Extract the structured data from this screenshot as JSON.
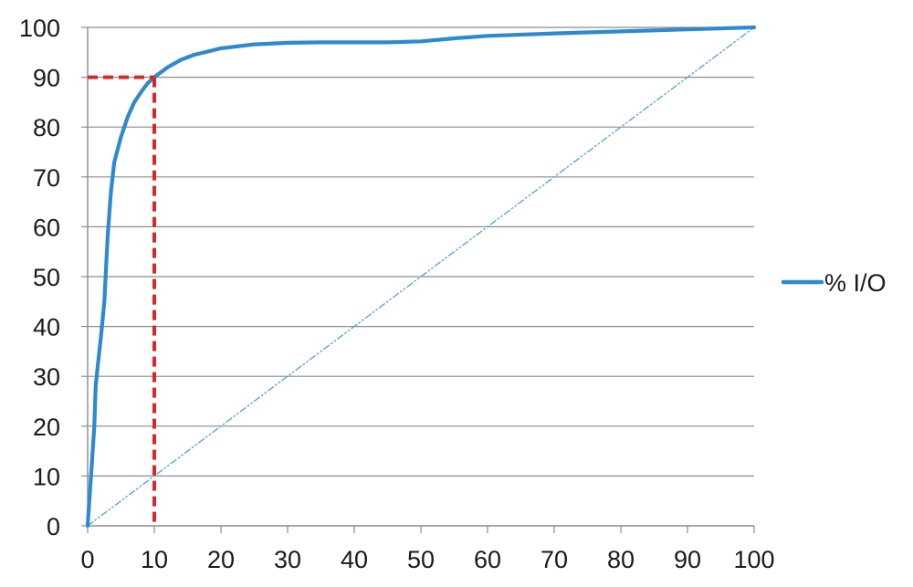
{
  "chart_data": {
    "type": "line",
    "title": "",
    "xlabel": "",
    "ylabel": "",
    "xlim": [
      0,
      100
    ],
    "ylim": [
      0,
      100
    ],
    "x_ticks": [
      "0",
      "10",
      "20",
      "30",
      "40",
      "50",
      "60",
      "70",
      "80",
      "90",
      "100"
    ],
    "y_ticks": [
      "0",
      "10",
      "20",
      "30",
      "40",
      "50",
      "60",
      "70",
      "80",
      "90",
      "100"
    ],
    "grid": "horizontal",
    "legend_position": "right",
    "series": [
      {
        "name": "% I/O",
        "color": "#2e8ad0",
        "style": "solid",
        "x": [
          0,
          0.5,
          1,
          1.2,
          1.5,
          2,
          2.5,
          3,
          3.5,
          4,
          5,
          6,
          7,
          8,
          9,
          10,
          12,
          14,
          16,
          20,
          25,
          30,
          35,
          40,
          45,
          50,
          55,
          60,
          70,
          80,
          90,
          100
        ],
        "y": [
          0,
          10,
          20,
          28,
          32,
          38,
          45,
          58,
          67,
          73,
          78,
          82,
          85,
          87,
          88.8,
          90,
          92,
          93.5,
          94.5,
          95.8,
          96.6,
          96.9,
          97,
          97,
          97,
          97.2,
          97.8,
          98.3,
          98.8,
          99.2,
          99.6,
          100
        ]
      },
      {
        "name": "",
        "color": "#5aa7d8",
        "style": "dash-dot",
        "x": [
          0,
          100
        ],
        "y": [
          0,
          100
        ]
      }
    ],
    "annotations": [
      {
        "type": "guide",
        "color": "#d9262b",
        "style": "dashed",
        "x": 10,
        "y": 90
      }
    ]
  }
}
